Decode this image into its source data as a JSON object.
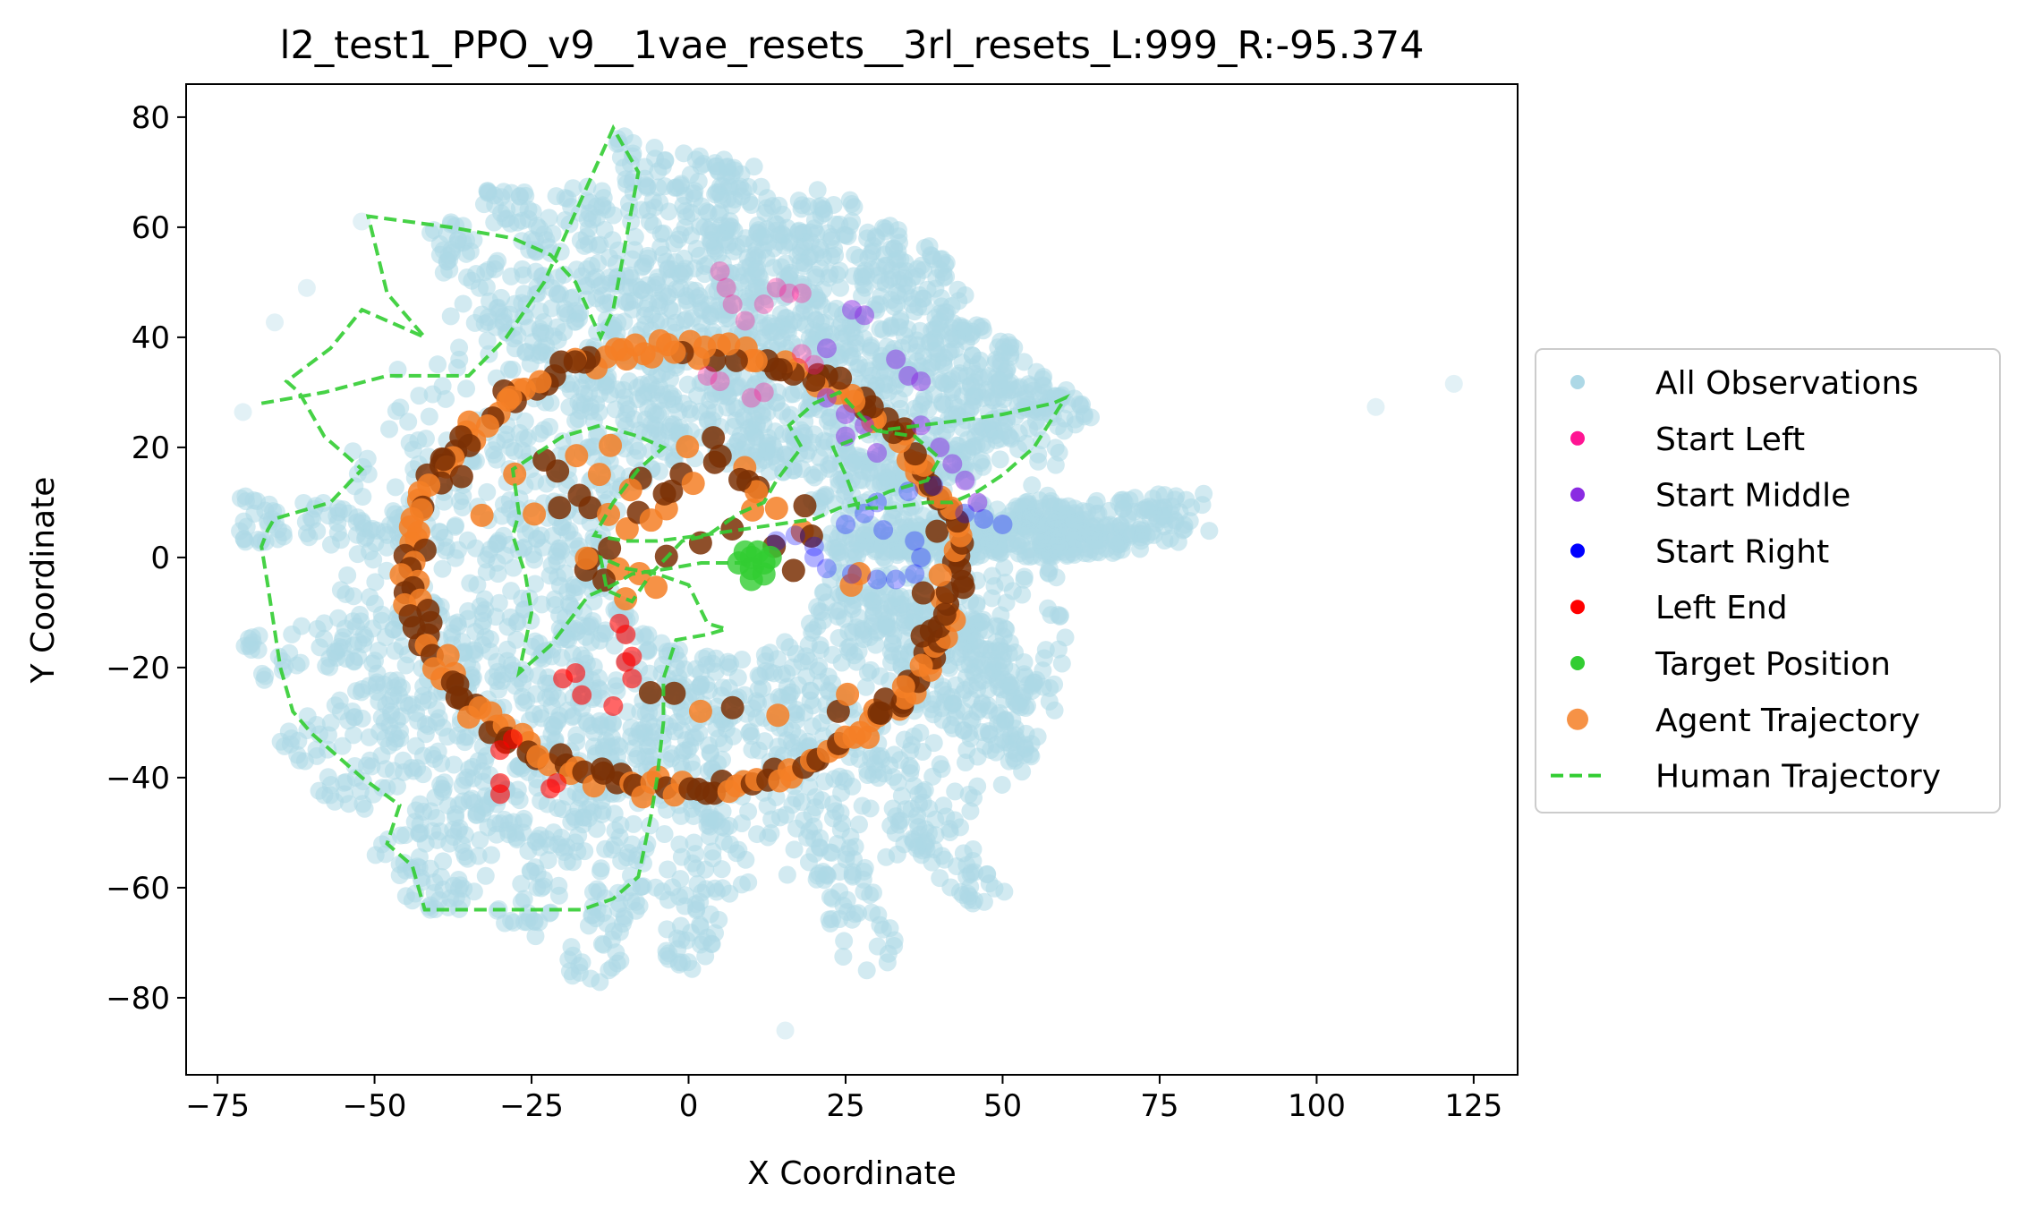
{
  "chart_data": {
    "type": "scatter",
    "title": "l2_test1_PPO_v9__1vae_resets__3rl_resets_L:999_R:-95.374",
    "xlabel": "X Coordinate",
    "ylabel": "Y Coordinate",
    "xlim": [
      -80,
      132
    ],
    "ylim": [
      -94,
      86
    ],
    "xticks": [
      -75,
      -50,
      -25,
      0,
      25,
      50,
      75,
      100,
      125
    ],
    "yticks": [
      -80,
      -60,
      -40,
      -20,
      0,
      20,
      40,
      60,
      80
    ],
    "xtick_labels": [
      "−75",
      "−50",
      "−25",
      "0",
      "25",
      "50",
      "75",
      "100",
      "125"
    ],
    "ytick_labels": [
      "−80",
      "−60",
      "−40",
      "−20",
      "0",
      "20",
      "40",
      "60",
      "80"
    ],
    "grid": false,
    "legend_position": "right, outside plot",
    "series": [
      {
        "name": "All Observations",
        "color": "#add8e6",
        "marker": "circle",
        "alpha": 0.35,
        "note_shape": "dense radial 'sunburst' cloud of points centered near (5, 0), spikes extending to radius ~70",
        "spike_tips": [
          [
            -51,
            62
          ],
          [
            -40,
            60
          ],
          [
            -30,
            68
          ],
          [
            -18,
            68
          ],
          [
            -8,
            77
          ],
          [
            2,
            75
          ],
          [
            8,
            72
          ],
          [
            16,
            66
          ],
          [
            24,
            66
          ],
          [
            33,
            60
          ],
          [
            40,
            56
          ],
          [
            45,
            45
          ],
          [
            52,
            38
          ],
          [
            58,
            32
          ],
          [
            63,
            28
          ],
          [
            -60,
            50
          ],
          [
            -68,
            39
          ],
          [
            -70,
            29
          ],
          [
            -72,
            7
          ],
          [
            -70,
            -19
          ],
          [
            -65,
            -35
          ],
          [
            -58,
            -45
          ],
          [
            -48,
            -56
          ],
          [
            -42,
            -64
          ],
          [
            -28,
            -68
          ],
          [
            -16,
            -77
          ],
          [
            0,
            -75
          ],
          [
            15,
            -86
          ],
          [
            30,
            -75
          ],
          [
            48,
            -63
          ],
          [
            55,
            -36
          ],
          [
            55,
            -25
          ],
          [
            50,
            -15
          ],
          [
            60,
            9
          ],
          [
            65,
            4
          ],
          [
            73,
            5
          ],
          [
            78,
            6
          ],
          [
            83,
            8
          ],
          [
            110,
            25
          ],
          [
            122,
            31
          ]
        ]
      },
      {
        "name": "Start Left",
        "color": "#ff1493",
        "marker": "circle",
        "alpha": 0.35,
        "points": [
          [
            5,
            52
          ],
          [
            6,
            49
          ],
          [
            7,
            46
          ],
          [
            9,
            43
          ],
          [
            12,
            46
          ],
          [
            14,
            49
          ],
          [
            16,
            48
          ],
          [
            18,
            48
          ],
          [
            3,
            33
          ],
          [
            5,
            32
          ],
          [
            10,
            29
          ],
          [
            12,
            30
          ],
          [
            18,
            37
          ],
          [
            20,
            35
          ]
        ]
      },
      {
        "name": "Start Middle",
        "color": "#8a2be2",
        "marker": "circle",
        "alpha": 0.5,
        "points": [
          [
            22,
            38
          ],
          [
            26,
            45
          ],
          [
            28,
            44
          ],
          [
            33,
            36
          ],
          [
            35,
            33
          ],
          [
            37,
            32
          ],
          [
            22,
            29
          ],
          [
            25,
            26
          ],
          [
            28,
            24
          ],
          [
            37,
            24
          ],
          [
            40,
            20
          ],
          [
            42,
            17
          ],
          [
            44,
            14
          ],
          [
            46,
            10
          ],
          [
            25,
            22
          ],
          [
            30,
            19
          ]
        ]
      },
      {
        "name": "Start Right",
        "color": "#0000ff",
        "marker": "circle",
        "alpha": 0.3,
        "points": [
          [
            14,
            3
          ],
          [
            17,
            4
          ],
          [
            20,
            2
          ],
          [
            22,
            -2
          ],
          [
            26,
            -3
          ],
          [
            30,
            -4
          ],
          [
            33,
            -4
          ],
          [
            36,
            -3
          ],
          [
            37,
            0
          ],
          [
            36,
            3
          ],
          [
            31,
            5
          ],
          [
            28,
            8
          ],
          [
            30,
            10
          ],
          [
            35,
            12
          ],
          [
            39,
            13
          ],
          [
            44,
            8
          ],
          [
            47,
            7
          ],
          [
            50,
            6
          ],
          [
            25,
            6
          ],
          [
            20,
            0
          ]
        ]
      },
      {
        "name": "Left End",
        "color": "#ff0000",
        "marker": "circle",
        "alpha": 0.6,
        "points": [
          [
            -30,
            -41
          ],
          [
            -30,
            -43
          ],
          [
            -22,
            -42
          ],
          [
            -21,
            -41
          ],
          [
            -30,
            -35
          ],
          [
            -28,
            -33
          ],
          [
            -20,
            -22
          ],
          [
            -18,
            -21
          ],
          [
            -17,
            -25
          ],
          [
            -12,
            -27
          ],
          [
            -10,
            -19
          ],
          [
            -9,
            -22
          ],
          [
            -9,
            -18
          ],
          [
            -10,
            -14
          ],
          [
            -11,
            -12
          ]
        ]
      },
      {
        "name": "Target Position",
        "color": "#32cd32",
        "marker": "circle",
        "alpha": 0.8,
        "points": [
          [
            8,
            -1
          ],
          [
            10,
            -2
          ],
          [
            12,
            -1
          ],
          [
            10,
            0
          ],
          [
            11,
            1
          ],
          [
            9,
            1
          ],
          [
            13,
            0
          ],
          [
            12,
            -3
          ],
          [
            10,
            -4
          ]
        ]
      },
      {
        "name": "Agent Trajectory",
        "color": "#f47f26",
        "dark_color": "#7a3005",
        "marker": "circle",
        "alpha": 0.8,
        "note_shape": "roughly circular loop radius ~42 centered near (0, -2) plus interior wandering path"
      },
      {
        "name": "Human Trajectory",
        "color": "#32cd32",
        "linestyle": "dashed",
        "points": [
          [
            -68,
            28
          ],
          [
            -58,
            30
          ],
          [
            -48,
            33
          ],
          [
            -35,
            33
          ],
          [
            -29,
            40
          ],
          [
            -23,
            50
          ],
          [
            -12,
            78
          ],
          [
            -8,
            70
          ],
          [
            -12,
            45
          ],
          [
            -14,
            40
          ],
          [
            -18,
            50
          ],
          [
            -22,
            55
          ],
          [
            -28,
            58
          ],
          [
            -38,
            60
          ],
          [
            -51,
            62
          ],
          [
            -48,
            48
          ],
          [
            -42,
            40
          ],
          [
            -52,
            45
          ],
          [
            -57,
            38
          ],
          [
            -64,
            32
          ],
          [
            -62,
            30
          ],
          [
            -58,
            22
          ],
          [
            -52,
            16
          ],
          [
            -57,
            10
          ],
          [
            -66,
            7
          ],
          [
            -67,
            5
          ],
          [
            -68,
            2
          ],
          [
            -67,
            -5
          ],
          [
            -65,
            -20
          ],
          [
            -63,
            -28
          ],
          [
            -60,
            -32
          ],
          [
            -52,
            -40
          ],
          [
            -46,
            -45
          ],
          [
            -48,
            -52
          ],
          [
            -44,
            -56
          ],
          [
            -42,
            -64
          ],
          [
            -30,
            -64
          ],
          [
            -17,
            -64
          ],
          [
            -12,
            -62
          ],
          [
            -8,
            -58
          ],
          [
            -6,
            -47
          ],
          [
            -5,
            -40
          ],
          [
            -4,
            -30
          ],
          [
            -4,
            -22
          ],
          [
            -2,
            -15
          ],
          [
            3,
            -14
          ],
          [
            6,
            -13
          ],
          [
            3,
            -12
          ],
          [
            0,
            -5
          ],
          [
            -5,
            -3
          ],
          [
            -10,
            -2
          ],
          [
            -14,
            0
          ],
          [
            -13,
            -6
          ],
          [
            -9,
            -8
          ],
          [
            -6,
            -3
          ],
          [
            -1,
            3
          ],
          [
            3,
            4
          ],
          [
            8,
            8
          ],
          [
            12,
            10
          ],
          [
            14,
            14
          ],
          [
            18,
            20
          ],
          [
            16,
            24
          ],
          [
            20,
            28
          ],
          [
            24,
            30
          ],
          [
            28,
            25
          ],
          [
            30,
            23
          ],
          [
            37,
            24
          ],
          [
            44,
            25
          ],
          [
            50,
            26
          ],
          [
            58,
            28
          ],
          [
            60,
            29
          ],
          [
            55,
            20
          ],
          [
            50,
            15
          ],
          [
            46,
            12
          ],
          [
            42,
            10
          ],
          [
            38,
            10
          ],
          [
            32,
            9
          ],
          [
            27,
            9
          ],
          [
            25,
            15
          ],
          [
            23,
            20
          ],
          [
            30,
            23
          ],
          [
            36,
            22
          ],
          [
            40,
            18
          ],
          [
            38,
            14
          ],
          [
            32,
            12
          ],
          [
            28,
            10
          ],
          [
            24,
            9
          ],
          [
            22,
            8
          ],
          [
            20,
            7
          ],
          [
            14,
            6
          ],
          [
            8,
            5
          ],
          [
            2,
            4
          ],
          [
            -5,
            3
          ],
          [
            -10,
            3
          ],
          [
            -15,
            4
          ],
          [
            -12,
            10
          ],
          [
            -8,
            16
          ],
          [
            -4,
            20
          ],
          [
            -8,
            22
          ],
          [
            -14,
            24
          ],
          [
            -20,
            22
          ],
          [
            -28,
            16
          ],
          [
            -27,
            8
          ],
          [
            -28,
            4
          ],
          [
            -26,
            -3
          ],
          [
            -25,
            -10
          ],
          [
            -27,
            -21
          ],
          [
            -22,
            -16
          ],
          [
            -18,
            -10
          ],
          [
            -16,
            -7
          ],
          [
            -12,
            -5
          ],
          [
            -9,
            -3
          ],
          [
            -3,
            -2
          ],
          [
            2,
            -1
          ],
          [
            8,
            -1
          ],
          [
            12,
            -2
          ]
        ]
      }
    ]
  }
}
